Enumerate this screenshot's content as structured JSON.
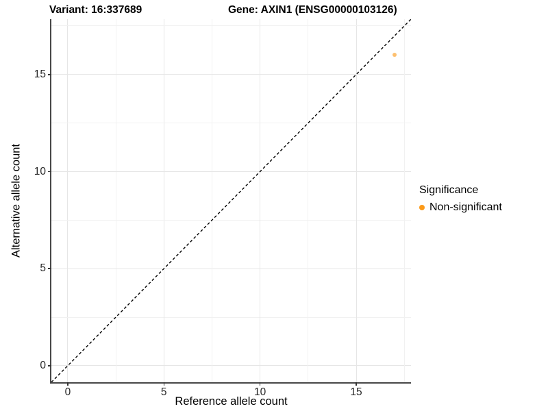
{
  "titles": {
    "variant": "Variant: 16:337689",
    "gene": "Gene: AXIN1 (ENSG00000103126)"
  },
  "chart_data": {
    "type": "scatter",
    "xlabel": "Reference allele count",
    "ylabel": "Alternative allele count",
    "xlim": [
      -0.85,
      17.85
    ],
    "ylim": [
      -0.85,
      17.85
    ],
    "xticks": [
      0,
      5,
      10,
      15
    ],
    "yticks": [
      0,
      5,
      10,
      15
    ],
    "minor_step": 2.5,
    "major_step": 5,
    "grid": "major+minor",
    "identity_line": {
      "type": "abline",
      "slope": 1,
      "intercept": 0,
      "style": "dashed",
      "color": "#000000"
    },
    "points": [
      {
        "x": 17,
        "y": 16,
        "series": "Non-significant"
      }
    ],
    "legend": {
      "title": "Significance",
      "position": "right",
      "items": [
        {
          "label": "Non-significant",
          "color": "#FC9A19"
        }
      ]
    }
  },
  "colors": {
    "background": "#FFFFFF",
    "axis_line": "#474747",
    "tick_text": "#262626",
    "grid_major": "#e6e6e6",
    "grid_minor": "#f1f1f1",
    "point_fill": "#FC9A19",
    "point_opacity": 0.62
  }
}
